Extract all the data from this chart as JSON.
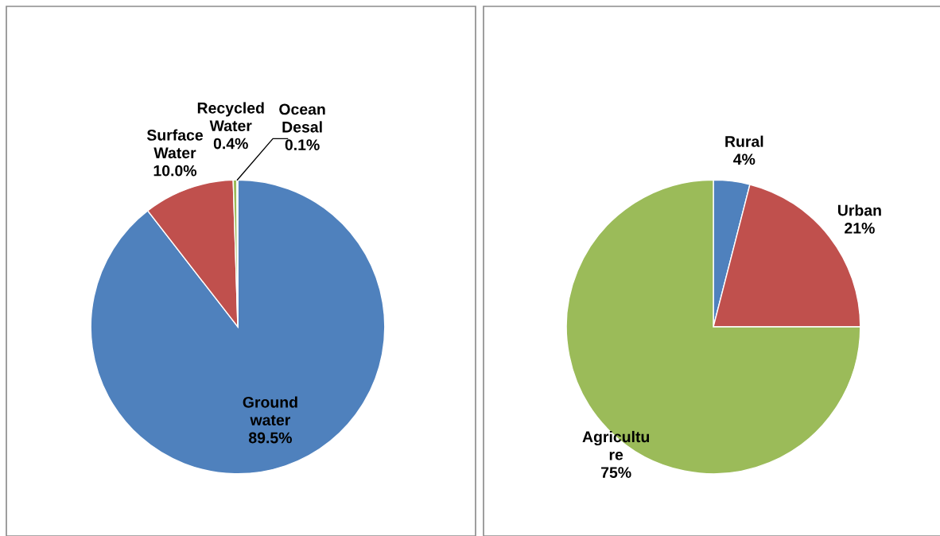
{
  "chart_data": [
    {
      "type": "pie",
      "categories": [
        "Ground\nwater",
        "Surface\nWater",
        "Recycled\nWater",
        "Ocean\nDesal"
      ],
      "values": [
        89.5,
        10.0,
        0.4,
        0.1
      ],
      "colors": [
        "#4f81bd",
        "#c0504d",
        "#9bbb59",
        "#8064a2"
      ],
      "value_labels": [
        "89.5%",
        "10.0%",
        "0.4%",
        "0.1%"
      ]
    },
    {
      "type": "pie",
      "categories": [
        "Rural",
        "Urban",
        "Agricultu\nre"
      ],
      "values": [
        4,
        21,
        75
      ],
      "colors": [
        "#4f81bd",
        "#c0504d",
        "#9bbb59"
      ],
      "value_labels": [
        "4%",
        "21%",
        "75%"
      ]
    }
  ]
}
